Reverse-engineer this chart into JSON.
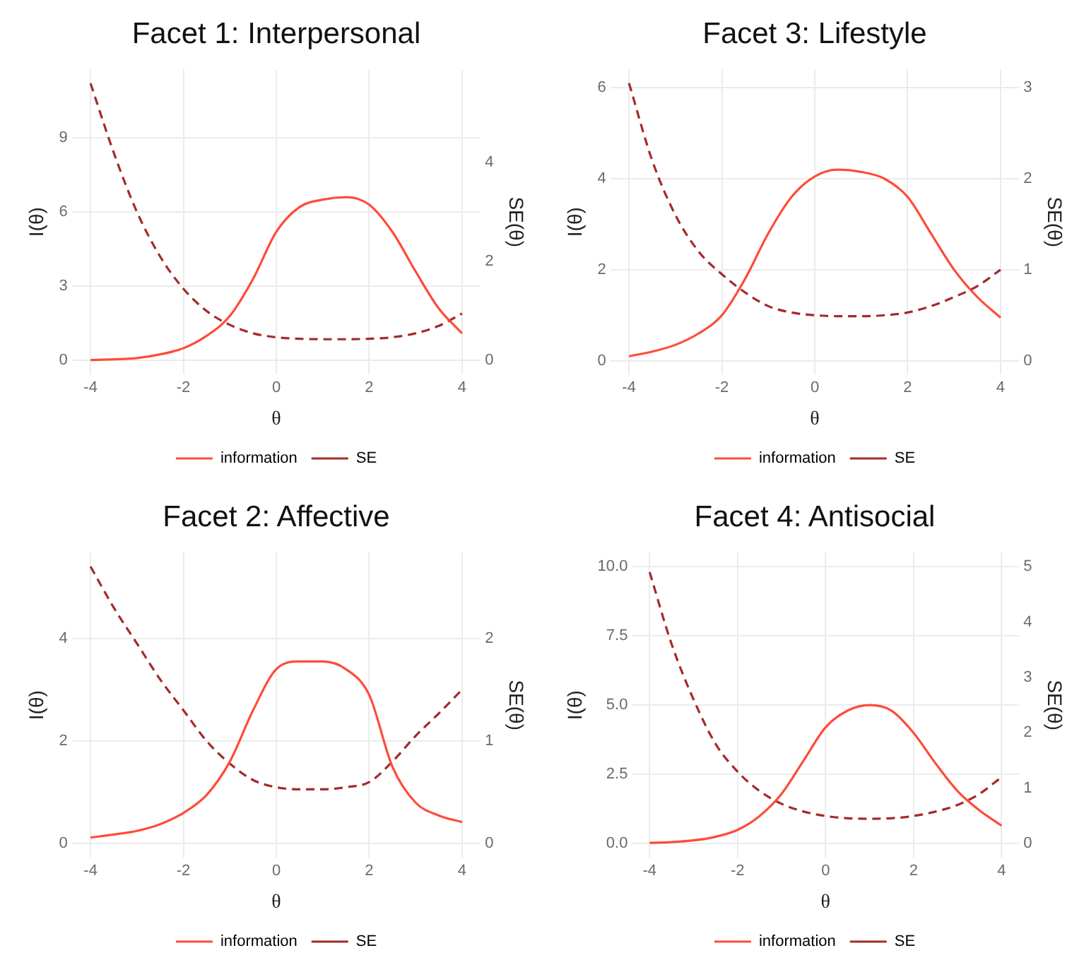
{
  "chart_data": [
    {
      "type": "line",
      "title": "Facet 1: Interpersonal",
      "xlabel": "θ",
      "ylabel": "I(θ)",
      "y2label": "SE(θ)",
      "x": [
        -4,
        -3.5,
        -3,
        -2.5,
        -2,
        -1.5,
        -1,
        -0.5,
        0,
        0.5,
        1,
        1.5,
        2,
        2.5,
        3,
        3.5,
        4
      ],
      "xlim": [
        -4.4,
        4.4
      ],
      "xticks": [
        -4,
        -2,
        0,
        2,
        4
      ],
      "ylim": [
        -0.56,
        11.76
      ],
      "yticks": [
        0,
        3,
        6,
        9
      ],
      "y2lim": [
        -0.28,
        5.88
      ],
      "y2ticks": [
        0,
        2,
        4
      ],
      "grid": true,
      "legend": "bottom",
      "series": [
        {
          "name": "information",
          "color": "#ff4b3a",
          "line_style": "solid",
          "values": [
            0.02,
            0.05,
            0.1,
            0.25,
            0.5,
            1.0,
            1.8,
            3.3,
            5.2,
            6.2,
            6.5,
            6.6,
            6.3,
            5.2,
            3.6,
            2.1,
            1.1
          ]
        },
        {
          "name": "SE",
          "color": "#a52a2a",
          "line_style": "dashed",
          "axis": "y2",
          "values": [
            5.6,
            4.2,
            3.0,
            2.1,
            1.45,
            1.0,
            0.72,
            0.55,
            0.47,
            0.44,
            0.43,
            0.43,
            0.44,
            0.47,
            0.55,
            0.7,
            0.95
          ]
        }
      ]
    },
    {
      "type": "line",
      "title": "Facet 3: Lifestyle",
      "xlabel": "θ",
      "ylabel": "I(θ)",
      "y2label": "SE(θ)",
      "x": [
        -4,
        -3.5,
        -3,
        -2.5,
        -2,
        -1.5,
        -1,
        -0.5,
        0,
        0.5,
        1,
        1.5,
        2,
        2.5,
        3,
        3.5,
        4
      ],
      "xlim": [
        -4.4,
        4.4
      ],
      "xticks": [
        -4,
        -2,
        0,
        2,
        4
      ],
      "ylim": [
        -0.3,
        6.4
      ],
      "yticks": [
        0,
        2,
        4,
        6
      ],
      "y2lim": [
        -0.15,
        3.2
      ],
      "y2ticks": [
        0,
        1,
        2,
        3
      ],
      "grid": true,
      "legend": "bottom",
      "series": [
        {
          "name": "information",
          "color": "#ff4b3a",
          "line_style": "solid",
          "values": [
            0.1,
            0.2,
            0.35,
            0.6,
            1.0,
            1.8,
            2.8,
            3.6,
            4.05,
            4.2,
            4.15,
            4.0,
            3.6,
            2.8,
            2.0,
            1.4,
            0.95
          ]
        },
        {
          "name": "SE",
          "color": "#a52a2a",
          "line_style": "dashed",
          "axis": "y2",
          "values": [
            3.05,
            2.2,
            1.6,
            1.2,
            0.95,
            0.75,
            0.6,
            0.53,
            0.5,
            0.49,
            0.49,
            0.5,
            0.53,
            0.6,
            0.7,
            0.82,
            1.0
          ]
        }
      ]
    },
    {
      "type": "line",
      "title": "Facet 2: Affective",
      "xlabel": "θ",
      "ylabel": "I(θ)",
      "y2label": "SE(θ)",
      "x": [
        -4,
        -3.5,
        -3,
        -2.5,
        -2,
        -1.5,
        -1,
        -0.5,
        0,
        0.5,
        1,
        1.5,
        2,
        2.5,
        3,
        3.5,
        4
      ],
      "xlim": [
        -4.4,
        4.4
      ],
      "xticks": [
        -4,
        -2,
        0,
        2,
        4
      ],
      "ylim": [
        -0.27,
        5.67
      ],
      "yticks": [
        0,
        2,
        4
      ],
      "y2lim": [
        -0.135,
        2.835
      ],
      "y2ticks": [
        0,
        1,
        2
      ],
      "grid": true,
      "legend": "bottom",
      "series": [
        {
          "name": "information",
          "color": "#ff4b3a",
          "line_style": "solid",
          "values": [
            0.12,
            0.18,
            0.25,
            0.38,
            0.6,
            0.95,
            1.6,
            2.6,
            3.4,
            3.55,
            3.55,
            3.4,
            2.9,
            1.5,
            0.8,
            0.55,
            0.42
          ]
        },
        {
          "name": "SE",
          "color": "#a52a2a",
          "line_style": "dashed",
          "axis": "y2",
          "values": [
            2.7,
            2.3,
            1.95,
            1.6,
            1.3,
            1.0,
            0.78,
            0.62,
            0.55,
            0.53,
            0.53,
            0.55,
            0.6,
            0.8,
            1.05,
            1.27,
            1.5
          ]
        }
      ]
    },
    {
      "type": "line",
      "title": "Facet 4: Antisocial",
      "xlabel": "θ",
      "ylabel": "I(θ)",
      "y2label": "SE(θ)",
      "x": [
        -4,
        -3.5,
        -3,
        -2.5,
        -2,
        -1.5,
        -1,
        -0.5,
        0,
        0.5,
        1,
        1.5,
        2,
        2.5,
        3,
        3.5,
        4
      ],
      "xlim": [
        -4.4,
        4.4
      ],
      "xticks": [
        -4,
        -2,
        0,
        2,
        4
      ],
      "ylim": [
        -0.5,
        10.5
      ],
      "yticks": [
        {
          "value": 0,
          "label": "0.0"
        },
        {
          "value": 2.5,
          "label": "2.5"
        },
        {
          "value": 5,
          "label": "5.0"
        },
        {
          "value": 7.5,
          "label": "7.5"
        },
        {
          "value": 10,
          "label": "10.0"
        }
      ],
      "y2lim": [
        -0.25,
        5.25
      ],
      "y2ticks": [
        0,
        1,
        2,
        3,
        4,
        5
      ],
      "grid": true,
      "legend": "bottom",
      "series": [
        {
          "name": "information",
          "color": "#ff4b3a",
          "line_style": "solid",
          "values": [
            0.03,
            0.06,
            0.12,
            0.25,
            0.5,
            1.0,
            1.8,
            3.0,
            4.2,
            4.8,
            5.0,
            4.8,
            4.0,
            2.9,
            1.9,
            1.2,
            0.65
          ]
        },
        {
          "name": "SE",
          "color": "#a52a2a",
          "line_style": "dashed",
          "axis": "y2",
          "values": [
            4.9,
            3.6,
            2.6,
            1.8,
            1.3,
            0.95,
            0.72,
            0.58,
            0.5,
            0.46,
            0.45,
            0.46,
            0.5,
            0.58,
            0.7,
            0.9,
            1.2
          ]
        }
      ]
    }
  ]
}
